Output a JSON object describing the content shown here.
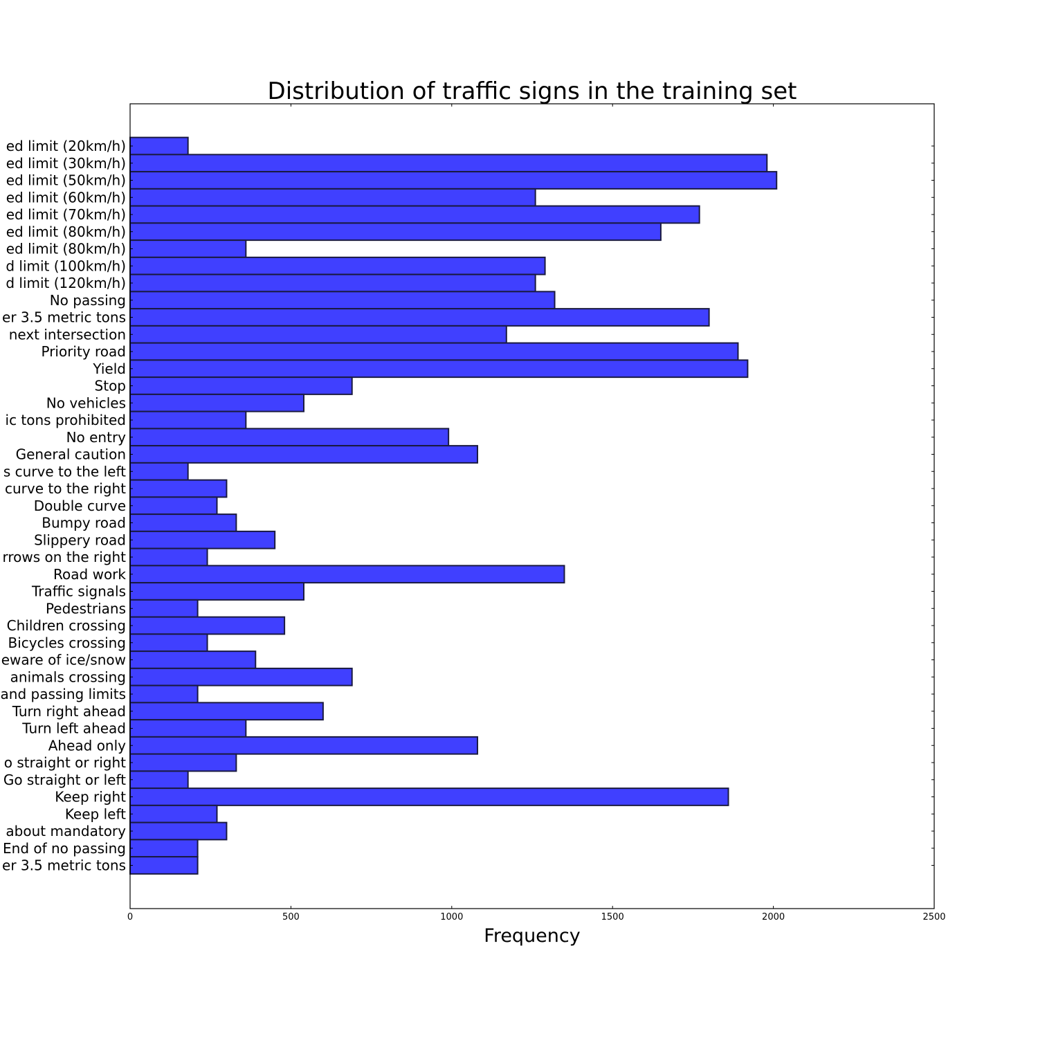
{
  "chart_data": {
    "type": "bar",
    "orientation": "horizontal",
    "title": "Distribution of traffic signs in the training set",
    "xlabel": "Frequency",
    "ylabel": "",
    "xlim": [
      0,
      2500
    ],
    "xticks": [
      "0",
      "500",
      "1000",
      "1500",
      "2000",
      "2500"
    ],
    "bar_color": "#4040ff",
    "categories": [
      "ed limit (20km/h)",
      "ed limit (30km/h)",
      "ed limit (50km/h)",
      "ed limit (60km/h)",
      "ed limit (70km/h)",
      "ed limit (80km/h)",
      "ed limit (80km/h)",
      "d limit (100km/h)",
      "d limit (120km/h)",
      "No passing",
      "er 3.5 metric tons",
      "next intersection",
      "Priority road",
      "Yield",
      "Stop",
      "No vehicles",
      "ic tons prohibited",
      "No entry",
      "General caution",
      "s curve to the left",
      "curve to the right",
      "Double curve",
      "Bumpy road",
      "Slippery road",
      "rrows on the right",
      "Road work",
      "Traffic signals",
      "Pedestrians",
      "Children crossing",
      "Bicycles crossing",
      "eware of ice/snow",
      "animals crossing",
      "and passing limits",
      "Turn right ahead",
      "Turn left ahead",
      "Ahead only",
      "o straight or right",
      "Go straight or left",
      "Keep right",
      "Keep left",
      "about mandatory",
      "End of no passing",
      "er 3.5 metric tons"
    ],
    "values": [
      180,
      1980,
      2010,
      1260,
      1770,
      1650,
      360,
      1290,
      1260,
      1320,
      1800,
      1170,
      1890,
      1920,
      690,
      540,
      360,
      990,
      1080,
      180,
      300,
      270,
      330,
      450,
      240,
      1350,
      540,
      210,
      480,
      240,
      390,
      690,
      210,
      600,
      360,
      1080,
      330,
      180,
      1860,
      270,
      300,
      210,
      210
    ],
    "grid": false,
    "legend": "none"
  }
}
